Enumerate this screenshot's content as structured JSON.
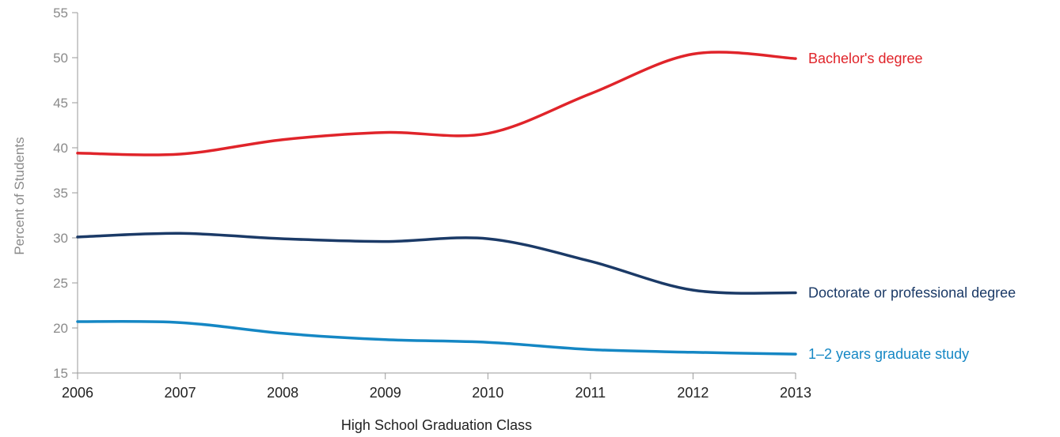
{
  "chart_data": {
    "type": "line",
    "xlabel": "High School Graduation Class",
    "ylabel": "Percent of Students",
    "x": [
      2006,
      2007,
      2008,
      2009,
      2010,
      2011,
      2012,
      2013
    ],
    "ylim": [
      15,
      55
    ],
    "yticks": [
      15,
      20,
      25,
      30,
      35,
      40,
      45,
      50,
      55
    ],
    "grid": false,
    "series": [
      {
        "name": "Bachelor's degree",
        "color": "#e0242a",
        "values": [
          39.4,
          39.3,
          40.9,
          41.7,
          41.6,
          46.0,
          50.4,
          49.9
        ]
      },
      {
        "name": "Doctorate or professional degree",
        "color": "#1b3a67",
        "values": [
          30.1,
          30.5,
          29.9,
          29.6,
          29.9,
          27.4,
          24.2,
          23.9
        ]
      },
      {
        "name": "1–2 years graduate study",
        "color": "#1587c4",
        "values": [
          20.7,
          20.6,
          19.4,
          18.7,
          18.4,
          17.6,
          17.3,
          17.1
        ]
      }
    ]
  }
}
